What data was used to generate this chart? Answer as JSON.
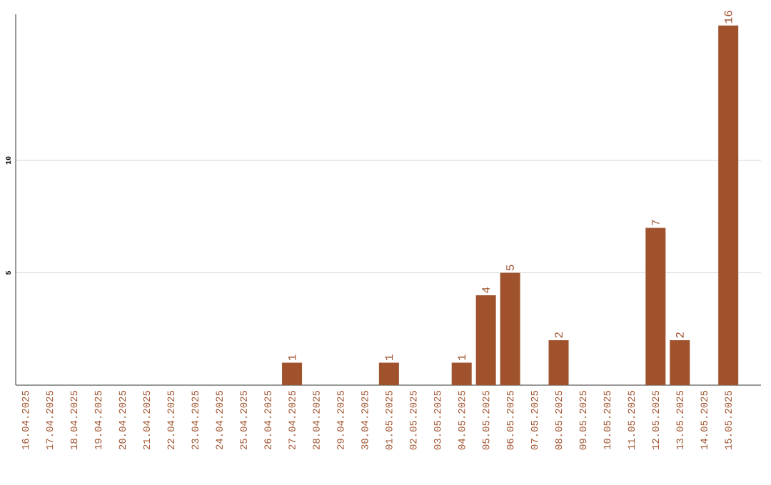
{
  "chart_data": {
    "type": "bar",
    "categories": [
      "16.04.2025",
      "17.04.2025",
      "18.04.2025",
      "19.04.2025",
      "20.04.2025",
      "21.04.2025",
      "22.04.2025",
      "23.04.2025",
      "24.04.2025",
      "25.04.2025",
      "26.04.2025",
      "27.04.2025",
      "28.04.2025",
      "29.04.2025",
      "30.04.2025",
      "01.05.2025",
      "02.05.2025",
      "03.05.2025",
      "04.05.2025",
      "05.05.2025",
      "06.05.2025",
      "07.05.2025",
      "08.05.2025",
      "09.05.2025",
      "10.05.2025",
      "11.05.2025",
      "12.05.2025",
      "13.05.2025",
      "14.05.2025",
      "15.05.2025"
    ],
    "values": [
      0,
      0,
      0,
      0,
      0,
      0,
      0,
      0,
      0,
      0,
      0,
      1,
      0,
      0,
      0,
      1,
      0,
      0,
      1,
      4,
      5,
      0,
      2,
      0,
      0,
      0,
      7,
      2,
      0,
      16
    ],
    "value_labels": [
      null,
      null,
      null,
      null,
      null,
      null,
      null,
      null,
      null,
      null,
      null,
      "1",
      null,
      null,
      null,
      "1",
      null,
      null,
      "1",
      "4",
      "5",
      null,
      "2",
      null,
      null,
      null,
      "7",
      "2",
      null,
      "16"
    ],
    "color": "#a0522d",
    "ylim": [
      0,
      16.5
    ],
    "yticks": [
      5,
      10
    ],
    "grid": "y"
  }
}
